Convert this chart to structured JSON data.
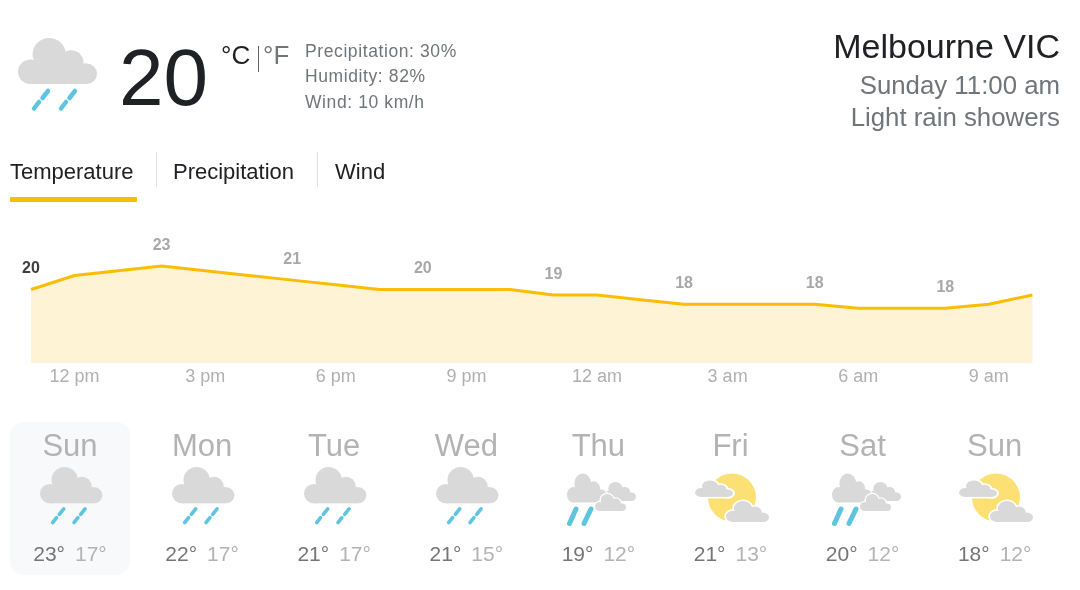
{
  "chart_data": [
    {
      "type": "other",
      "title": "Melbourne VIC",
      "subtitle": "Sunday 11:00 am",
      "annotations": [
        "Light rain showers",
        "20",
        "°C",
        "°F",
        "Precipitation: 30%",
        "Humidity: 82%",
        "Wind: 10 km/h",
        "Temperature",
        "Precipitation",
        "Wind"
      ]
    },
    {
      "type": "area",
      "categories": [
        null,
        "12 pm",
        null,
        null,
        "3 pm",
        null,
        null,
        "6 pm",
        null,
        null,
        "9 pm",
        null,
        null,
        "12 am",
        null,
        null,
        "3 am",
        null,
        null,
        "6 am",
        null,
        null,
        "9 am",
        null
      ],
      "values": [
        20,
        21.8,
        22.4,
        23,
        22.4,
        21.8,
        21.2,
        20.6,
        20,
        20,
        20,
        20,
        19.3,
        19.3,
        18.7,
        18.1,
        18.1,
        18.1,
        18.1,
        17.6,
        17.6,
        17.6,
        18.1,
        19.3
      ],
      "value_labels": [
        "20",
        null,
        null,
        "23",
        null,
        null,
        "21",
        null,
        null,
        "20",
        null,
        null,
        "19",
        null,
        null,
        "18",
        null,
        null,
        "18",
        null,
        null,
        "18",
        null,
        null
      ],
      "color": "#fbbc04",
      "tick_labels": "x"
    },
    {
      "type": "other",
      "categories": [
        "Sun",
        "Mon",
        "Tue",
        "Wed",
        "Thu",
        "Fri",
        "Sat",
        "Sun"
      ],
      "annotations": [
        "23°",
        "17°",
        "22°",
        "17°",
        "21°",
        "17°",
        "21°",
        "15°",
        "19°",
        "12°",
        "21°",
        "13°",
        "20°",
        "12°",
        "18°",
        "12°"
      ]
    }
  ]
}
